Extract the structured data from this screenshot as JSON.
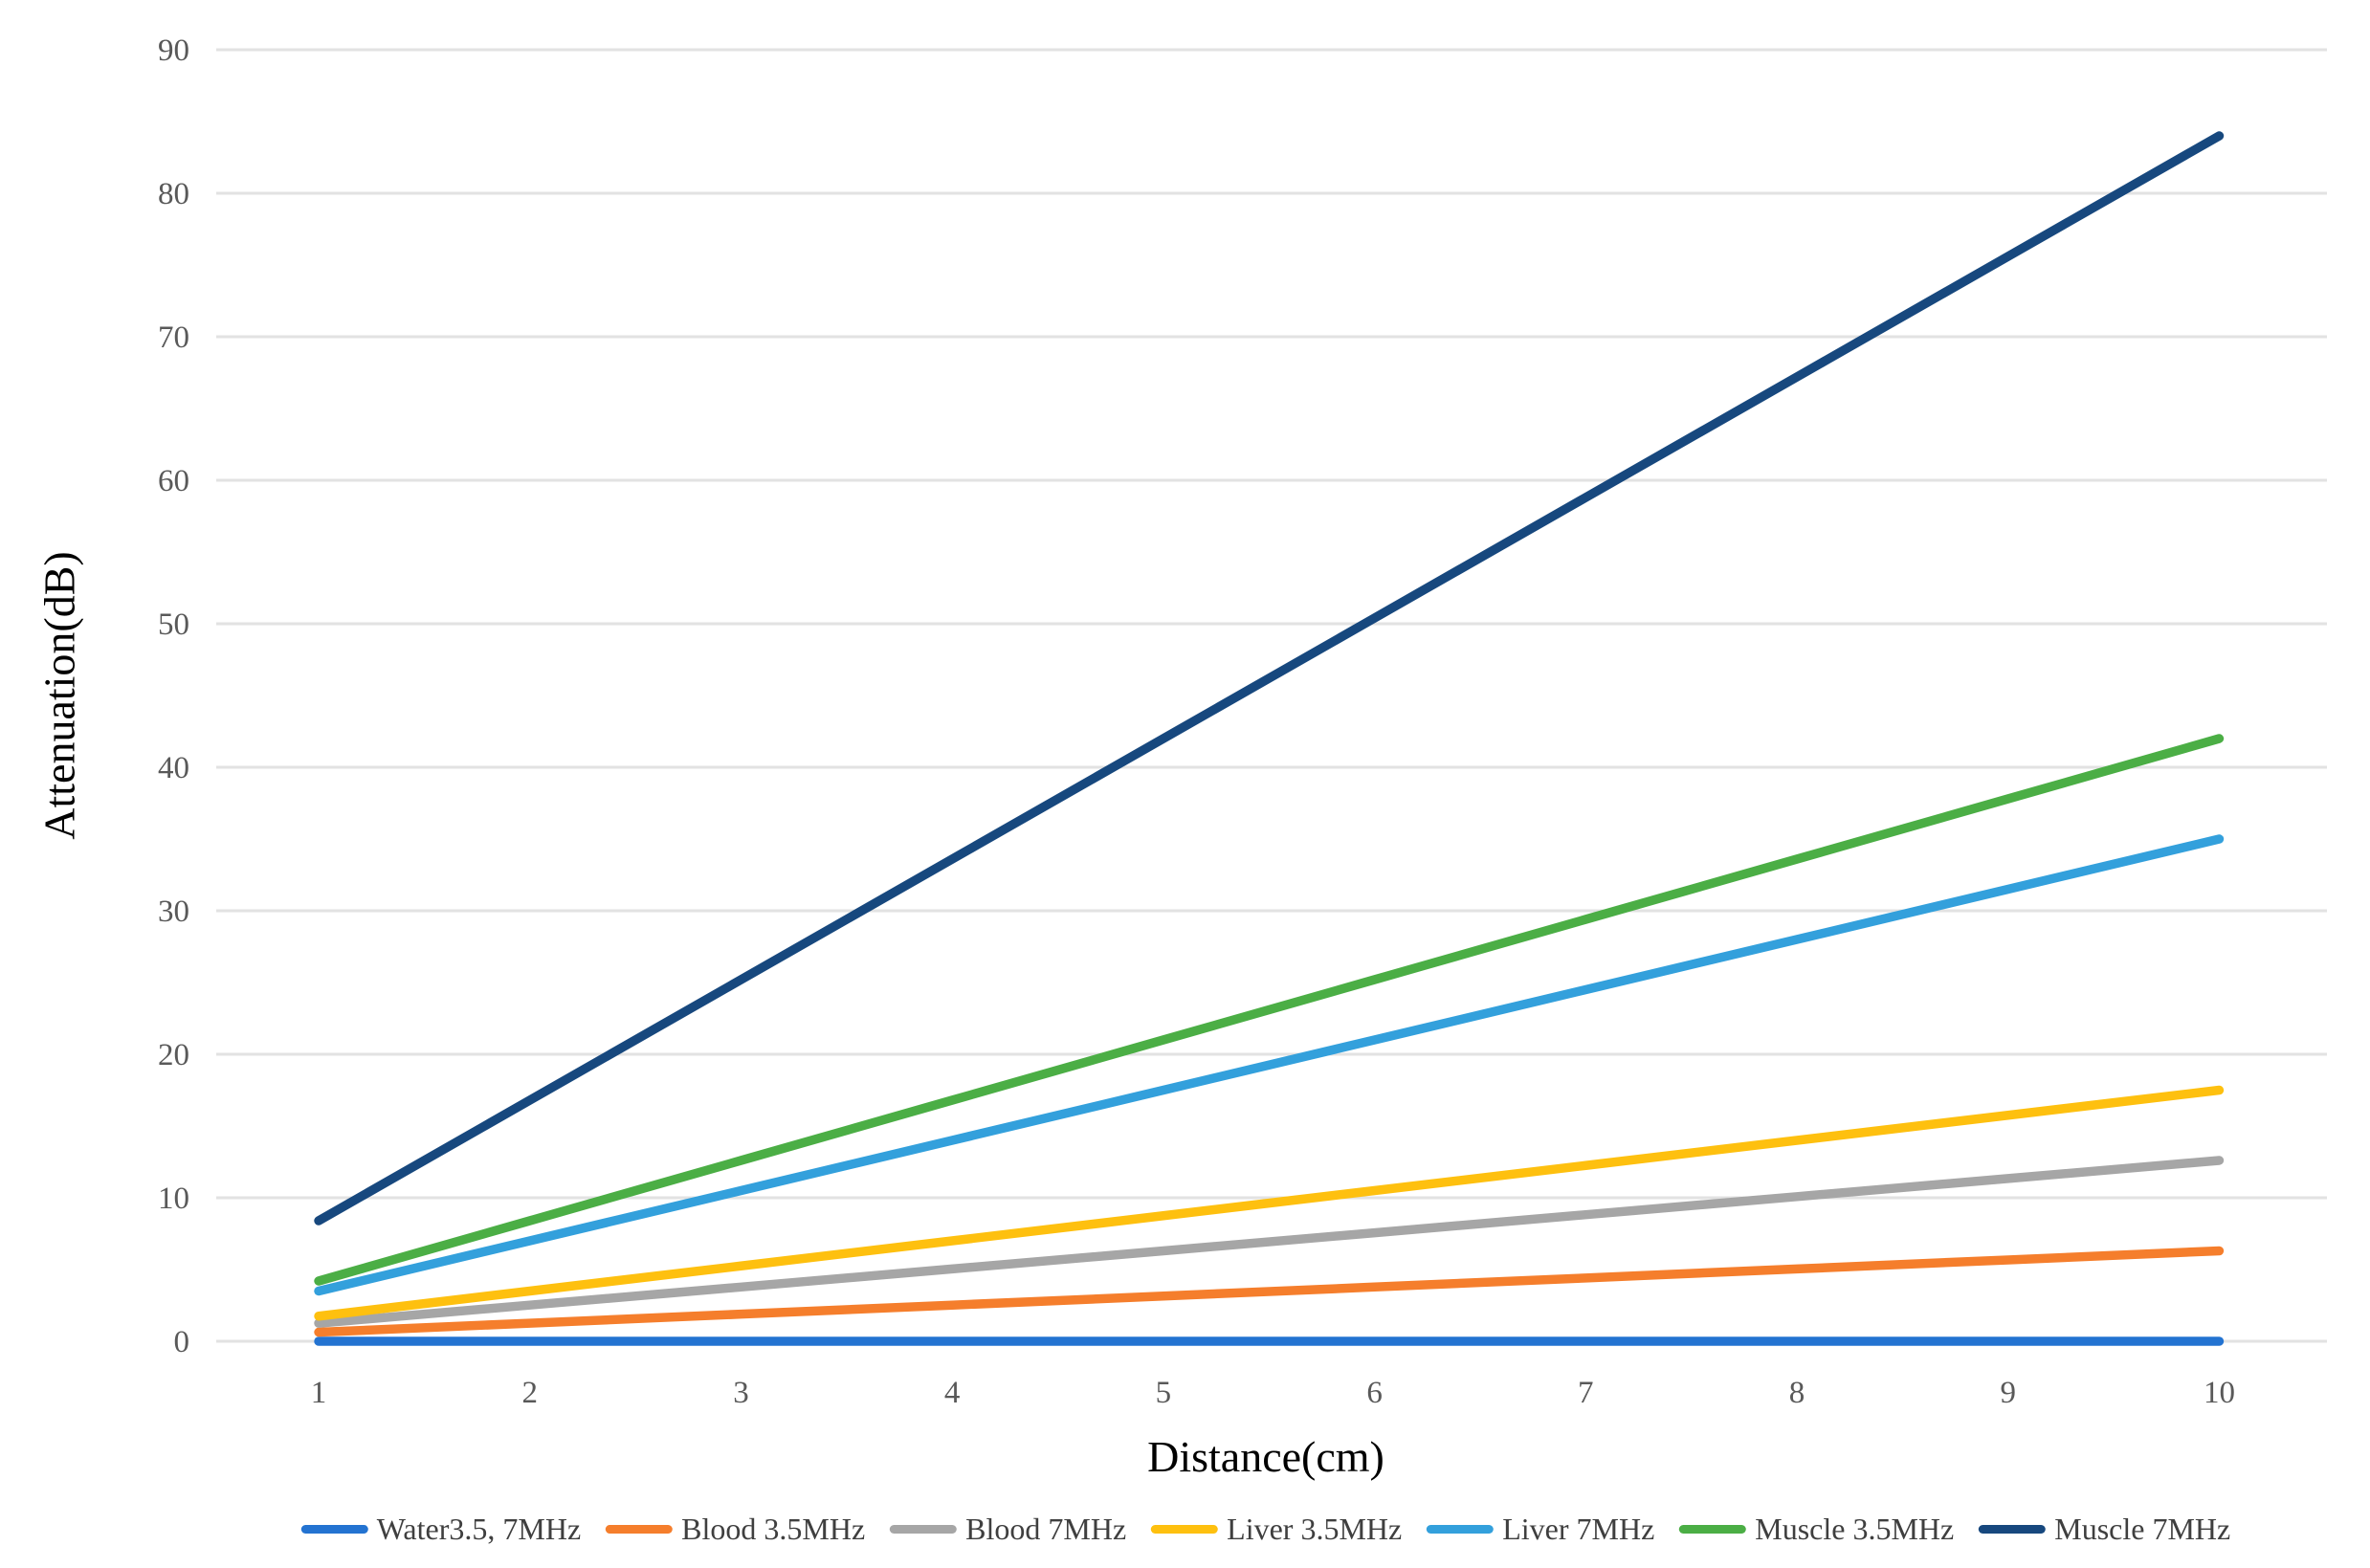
{
  "chart_data": {
    "type": "line",
    "title": "",
    "xlabel": "Distance(cm)",
    "ylabel": "Attenuation(dB)",
    "x": [
      1,
      2,
      3,
      4,
      5,
      6,
      7,
      8,
      9,
      10
    ],
    "series": [
      {
        "name": "Water3.5, 7MHz",
        "color": "#2373D1",
        "values": [
          0,
          0,
          0,
          0,
          0,
          0,
          0,
          0,
          0,
          0
        ]
      },
      {
        "name": "Blood 3.5MHz",
        "color": "#F57E2C",
        "values": [
          0.63,
          1.26,
          1.89,
          2.52,
          3.15,
          3.78,
          4.41,
          5.04,
          5.67,
          6.3
        ]
      },
      {
        "name": "Blood 7MHz",
        "color": "#A6A6A6",
        "values": [
          1.26,
          2.52,
          3.78,
          5.04,
          6.3,
          7.56,
          8.82,
          10.08,
          11.34,
          12.6
        ]
      },
      {
        "name": "Liver 3.5MHz",
        "color": "#FEC00F",
        "values": [
          1.75,
          3.5,
          5.25,
          7,
          8.75,
          10.5,
          12.25,
          14,
          15.75,
          17.5
        ]
      },
      {
        "name": "Liver 7MHz",
        "color": "#33A0DC",
        "values": [
          3.5,
          7,
          10.5,
          14,
          17.5,
          21,
          24.5,
          28,
          31.5,
          35
        ]
      },
      {
        "name": "Muscle 3.5MHz",
        "color": "#4BAE45",
        "values": [
          4.2,
          8.4,
          12.6,
          16.8,
          21,
          25.2,
          29.4,
          33.6,
          37.8,
          42
        ]
      },
      {
        "name": "Muscle 7MHz",
        "color": "#17487E",
        "values": [
          8.4,
          16.8,
          25.2,
          33.6,
          42,
          50.4,
          58.8,
          67.2,
          75.6,
          84
        ]
      }
    ],
    "xticks": [
      1,
      2,
      3,
      4,
      5,
      6,
      7,
      8,
      9,
      10
    ],
    "yticks": [
      0,
      10,
      20,
      30,
      40,
      50,
      60,
      70,
      80,
      90
    ],
    "xlim": [
      0.515,
      10.51
    ],
    "ylim": [
      0,
      90
    ],
    "grid": "horizontal",
    "legend_position": "bottom",
    "colors": {
      "gridline": "#E2E2E2",
      "tick_label": "#595959",
      "legend_text": "#3F3F3F",
      "axis_title": "#000000"
    }
  }
}
